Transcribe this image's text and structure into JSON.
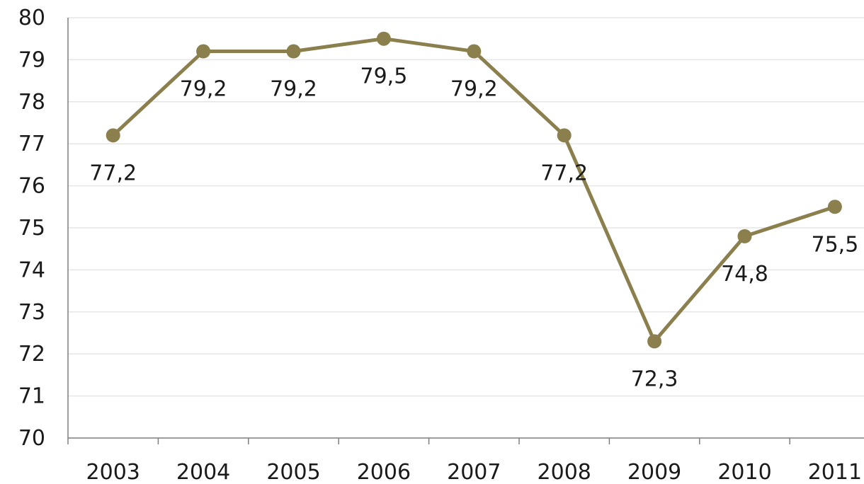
{
  "chart_data": {
    "type": "line",
    "title": "",
    "xlabel": "",
    "ylabel": "",
    "categories": [
      "2003",
      "2004",
      "2005",
      "2006",
      "2007",
      "2008",
      "2009",
      "2010",
      "2011"
    ],
    "series": [
      {
        "values": [
          77.2,
          79.2,
          79.2,
          79.5,
          79.2,
          77.2,
          72.3,
          74.8,
          75.5
        ],
        "labels": [
          "77,2",
          "79,2",
          "79,2",
          "79,5",
          "79,2",
          "77,2",
          "72,3",
          "74,8",
          "75,5"
        ],
        "color": "#8b7f4e"
      }
    ],
    "ylim": [
      70,
      80
    ],
    "yticks": [
      "70",
      "71",
      "72",
      "73",
      "74",
      "75",
      "76",
      "77",
      "78",
      "79",
      "80"
    ],
    "grid": true,
    "legend": "none"
  },
  "colors": {
    "line": "#8b7f4e",
    "grid": "#e6e6e6",
    "axis": "#7f7f7f",
    "text": "#1a1a1a"
  }
}
